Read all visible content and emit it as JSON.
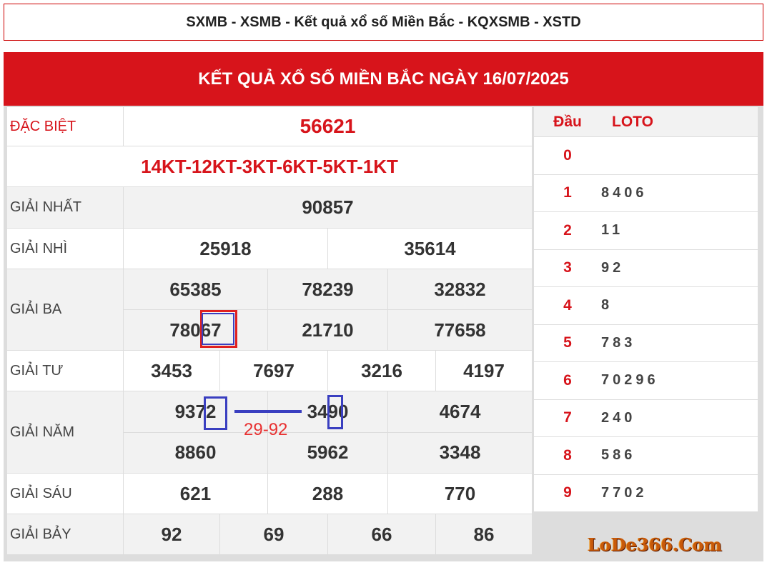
{
  "page_title": "SXMB - XSMB - Kết quả xổ số Miền Bắc - KQXSMB - XSTD",
  "banner": "KẾT QUẢ XỔ SỐ MIỀN BẮC NGÀY 16/07/2025",
  "prizes": [
    {
      "label": "ĐẶC BIỆT",
      "numbers": [
        "56621"
      ]
    },
    {
      "label": "",
      "numbers": [
        "14KT-12KT-3KT-6KT-5KT-1KT"
      ]
    },
    {
      "label": "GIẢI NHẤT",
      "numbers": [
        "90857"
      ]
    },
    {
      "label": "GIẢI NHÌ",
      "numbers": [
        "25918",
        "35614"
      ]
    },
    {
      "label": "GIẢI BA",
      "numbers": [
        "65385",
        "78239",
        "32832",
        "78067",
        "21710",
        "77658"
      ]
    },
    {
      "label": "GIẢI TƯ",
      "numbers": [
        "3453",
        "7697",
        "3216",
        "4197"
      ]
    },
    {
      "label": "GIẢI NĂM",
      "numbers": [
        "9372",
        "3490",
        "4674",
        "8860",
        "5962",
        "3348"
      ]
    },
    {
      "label": "GIẢI SÁU",
      "numbers": [
        "621",
        "288",
        "770"
      ]
    },
    {
      "label": "GIẢI BẢY",
      "numbers": [
        "92",
        "69",
        "66",
        "86"
      ]
    }
  ],
  "annotation": "29-92",
  "loto": {
    "head_label": "Đầu",
    "loto_label": "LOTO",
    "rows": [
      {
        "head": "0",
        "values": ""
      },
      {
        "head": "1",
        "values": "8406"
      },
      {
        "head": "2",
        "values": "11"
      },
      {
        "head": "3",
        "values": "92"
      },
      {
        "head": "4",
        "values": "8"
      },
      {
        "head": "5",
        "values": "783"
      },
      {
        "head": "6",
        "values": "70296"
      },
      {
        "head": "7",
        "values": "240"
      },
      {
        "head": "8",
        "values": "586"
      },
      {
        "head": "9",
        "values": "7702"
      }
    ]
  },
  "watermark": "LoDe366.Com",
  "colors": {
    "accent": "#d7141b",
    "highlight_red": "#e02020",
    "highlight_blue": "#3a3fc0"
  }
}
